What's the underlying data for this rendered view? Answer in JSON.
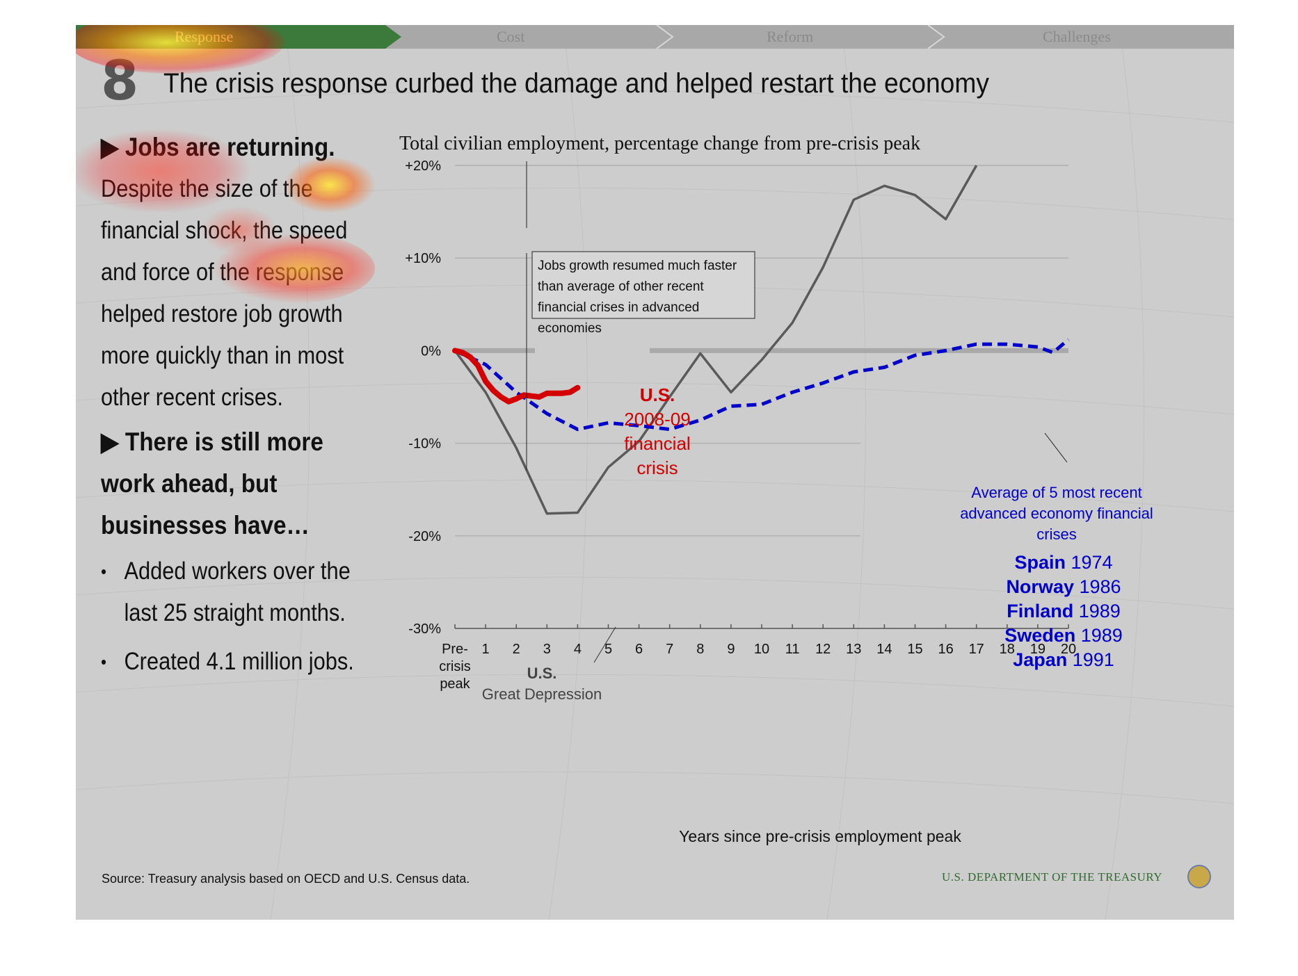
{
  "nav": {
    "tabs": [
      {
        "label": "Response",
        "active": true
      },
      {
        "label": "Cost",
        "active": false
      },
      {
        "label": "Reform",
        "active": false
      },
      {
        "label": "Challenges",
        "active": false
      }
    ]
  },
  "slide": {
    "number": "8",
    "title": "The crisis response curbed the damage and helped restart the economy"
  },
  "left_panel": {
    "heading1": "▶ Jobs are returning.",
    "paragraph1": "Despite the size of the financial shock, the speed and force of the response helped restore job growth more quickly than in most other recent crises.",
    "heading2": "▶ There is still more work ahead, but businesses have…",
    "bullets": [
      "Added workers over the last 25 straight months.",
      "Created 4.1 million jobs."
    ]
  },
  "footer": {
    "source": "Source: Treasury analysis based on OECD and U.S. Census data.",
    "agency": "U.S. DEPARTMENT OF THE TREASURY"
  },
  "colors": {
    "great_depression": "#5a5a5a",
    "us_2008": "#d40000",
    "avg_crises": "#0000cc",
    "zero_line": "#a9a9a9",
    "background": "#cdcdcd",
    "treasury_green": "#2f6b2f"
  },
  "chart_data": {
    "type": "line",
    "title": "Total civilian employment, percentage change from pre-crisis peak",
    "xlabel": "Years since pre-crisis employment peak",
    "ylabel": "",
    "xlim": [
      0,
      20
    ],
    "ylim": [
      -30,
      20
    ],
    "grid": true,
    "x_tick_labels": [
      "Pre-crisis peak",
      "1",
      "2",
      "3",
      "4",
      "5",
      "6",
      "7",
      "8",
      "9",
      "10",
      "11",
      "12",
      "13",
      "14",
      "15",
      "16",
      "17",
      "18",
      "19",
      "20"
    ],
    "y_tick_labels": [
      "+20%",
      "+10%",
      "0%",
      "-10%",
      "-20%",
      "-30%"
    ],
    "series": [
      {
        "name": "U.S. Great Depression",
        "style": "solid",
        "x": [
          0,
          1,
          2,
          3,
          4,
          5,
          6,
          7,
          8,
          9,
          10,
          11,
          12,
          13,
          14,
          15,
          16,
          17
        ],
        "y": [
          0,
          -4.5,
          -10.5,
          -17.6,
          -17.5,
          -12.6,
          -9.8,
          -5,
          -0.3,
          -4.5,
          -1,
          3,
          9,
          16.3,
          17.8,
          16.8,
          14.2,
          20
        ]
      },
      {
        "name": "U.S. 2008-09 financial crisis",
        "style": "thick",
        "x": [
          0,
          0.25,
          0.5,
          0.75,
          1,
          1.25,
          1.5,
          1.75,
          2,
          2.25,
          2.5,
          2.75,
          3,
          3.25,
          3.5,
          3.75,
          4
        ],
        "y": [
          0,
          -0.2,
          -0.7,
          -1.6,
          -3.3,
          -4.3,
          -5.0,
          -5.5,
          -5.2,
          -4.8,
          -4.9,
          -5.0,
          -4.6,
          -4.6,
          -4.6,
          -4.5,
          -4.0
        ]
      },
      {
        "name": "Average of 5 most recent advanced economy financial crises",
        "style": "dashed",
        "x": [
          0,
          1,
          2,
          3,
          4,
          5,
          6,
          7,
          8,
          9,
          10,
          11,
          12,
          13,
          14,
          15,
          16,
          17,
          18,
          19,
          19.5,
          20
        ],
        "y": [
          0,
          -1.5,
          -4.5,
          -6.8,
          -8.5,
          -7.8,
          -8.1,
          -8.5,
          -7.5,
          -6,
          -5.8,
          -4.5,
          -3.5,
          -2.3,
          -1.8,
          -0.5,
          0,
          0.7,
          0.7,
          0.4,
          -0.2,
          1.2
        ]
      }
    ],
    "annotations": {
      "callout": "Jobs growth resumed much faster than average of other recent financial crises in advanced economies",
      "us_label_bold": "U.S.",
      "us_label_text": "2008-09 financial crisis",
      "avg_label": "Average of 5 most recent advanced economy financial crises",
      "gd_label_bold": "U.S.",
      "gd_label_text": "Great Depression",
      "countries": [
        {
          "name": "Spain",
          "year": "1974"
        },
        {
          "name": "Norway",
          "year": "1986"
        },
        {
          "name": "Finland",
          "year": "1989"
        },
        {
          "name": "Sweden",
          "year": "1989"
        },
        {
          "name": "Japan",
          "year": "1991"
        }
      ]
    }
  }
}
